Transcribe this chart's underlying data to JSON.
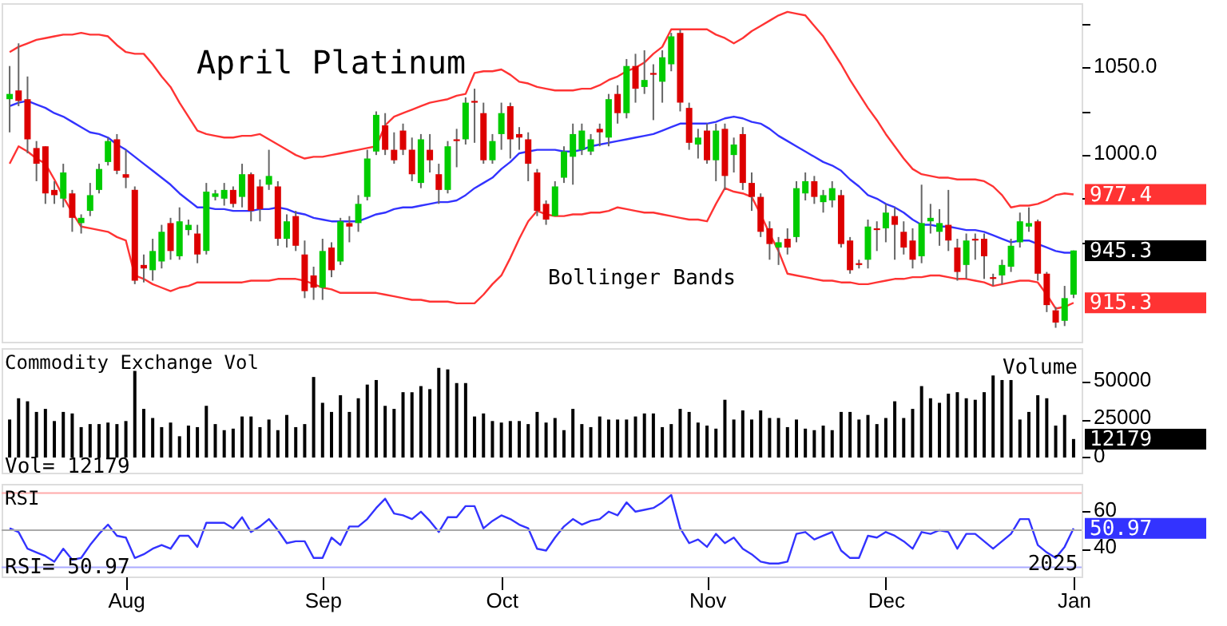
{
  "chart_data": [
    {
      "type": "candlestick",
      "title": "April Platinum",
      "tick_labels": "y",
      "ylim": [
        893,
        1087
      ],
      "yticks": [
        {
          "value": 1075,
          "label": null
        },
        {
          "value": 1050,
          "label": "1050.0"
        },
        {
          "value": 1025,
          "label": null
        },
        {
          "value": 1000,
          "label": "1000.0"
        },
        {
          "value": 975,
          "label": null
        },
        {
          "value": 950,
          "label": null
        }
      ],
      "categories": [
        null,
        null,
        null,
        null,
        null,
        null,
        null,
        null,
        null,
        null,
        null,
        null,
        null,
        null,
        null,
        null,
        null,
        null,
        null,
        null,
        null,
        null,
        null,
        null,
        null,
        null,
        null,
        null,
        null,
        null,
        null,
        null,
        null,
        null,
        null,
        null,
        null,
        null,
        null,
        null,
        null,
        null,
        null,
        null,
        null,
        null,
        null,
        null,
        null,
        null,
        null,
        null,
        null,
        null,
        null,
        null,
        null,
        null,
        null,
        null,
        null,
        null,
        null,
        null,
        null,
        null,
        null,
        null,
        null,
        null,
        null,
        null,
        null,
        null,
        null,
        null,
        null,
        null,
        null,
        null,
        null,
        null,
        null,
        null,
        null,
        null,
        null,
        null,
        null,
        null,
        null,
        null,
        null,
        null,
        null,
        null,
        null,
        null,
        null,
        null,
        null,
        null,
        null,
        null,
        null,
        null,
        null,
        null,
        null,
        null,
        null,
        null,
        null,
        null,
        null,
        null,
        null,
        null,
        null,
        null
      ],
      "ohlc": [
        [
          1032,
          1051,
          1013,
          1035
        ],
        [
          1037,
          1064,
          1028,
          1031
        ],
        [
          1032,
          1045,
          1001,
          1009
        ],
        [
          1004,
          1008,
          985,
          995
        ],
        [
          1005,
          1005,
          972,
          978
        ],
        [
          980,
          985,
          972,
          977
        ],
        [
          975,
          995,
          970,
          990
        ],
        [
          978,
          980,
          956,
          964
        ],
        [
          961,
          966,
          955,
          964
        ],
        [
          968,
          984,
          965,
          977
        ],
        [
          980,
          995,
          978,
          992
        ],
        [
          996,
          1010,
          994,
          1008
        ],
        [
          1009,
          1012,
          989,
          991
        ],
        [
          989,
          1003,
          981,
          987
        ],
        [
          980,
          982,
          926,
          928
        ],
        [
          937,
          943,
          927,
          935
        ],
        [
          934,
          952,
          928,
          945
        ],
        [
          939,
          960,
          935,
          956
        ],
        [
          961,
          964,
          940,
          945
        ],
        [
          942,
          970,
          940,
          962
        ],
        [
          957,
          963,
          954,
          960
        ],
        [
          955,
          960,
          938,
          943
        ],
        [
          945,
          984,
          943,
          979
        ],
        [
          976,
          980,
          974,
          978
        ],
        [
          975,
          984,
          971,
          980
        ],
        [
          980,
          982,
          970,
          972
        ],
        [
          976,
          995,
          970,
          989
        ],
        [
          989,
          990,
          962,
          968
        ],
        [
          982,
          986,
          962,
          969
        ],
        [
          983,
          1003,
          980,
          988
        ],
        [
          982,
          985,
          948,
          952
        ],
        [
          952,
          966,
          947,
          962
        ],
        [
          965,
          968,
          945,
          948
        ],
        [
          943,
          951,
          918,
          922
        ],
        [
          931,
          936,
          917,
          924
        ],
        [
          924,
          952,
          917,
          945
        ],
        [
          947,
          950,
          930,
          934
        ],
        [
          939,
          964,
          937,
          962
        ],
        [
          961,
          965,
          950,
          959
        ],
        [
          961,
          977,
          956,
          972
        ],
        [
          976,
          1003,
          974,
          998
        ],
        [
          1002,
          1025,
          1000,
          1023
        ],
        [
          1017,
          1024,
          1000,
          1003
        ],
        [
          1003,
          1013,
          995,
          997
        ],
        [
          1014,
          1018,
          1000,
          1003
        ],
        [
          1003,
          1010,
          985,
          989
        ],
        [
          984,
          1012,
          981,
          1009
        ],
        [
          1003,
          1012,
          990,
          997
        ],
        [
          989,
          995,
          972,
          980
        ],
        [
          980,
          1008,
          978,
          1005
        ],
        [
          1009,
          1015,
          993,
          1008
        ],
        [
          1009,
          1033,
          1006,
          1030
        ],
        [
          1031,
          1038,
          1007,
          1030
        ],
        [
          1024,
          1030,
          995,
          997
        ],
        [
          997,
          1012,
          995,
          1008
        ],
        [
          1012,
          1030,
          1003,
          1024
        ],
        [
          1028,
          1030,
          998,
          1009
        ],
        [
          1012,
          1016,
          1003,
          1010
        ],
        [
          1009,
          1013,
          985,
          995
        ],
        [
          990,
          992,
          965,
          968
        ],
        [
          972,
          974,
          960,
          963
        ],
        [
          965,
          985,
          965,
          982
        ],
        [
          987,
          1005,
          984,
          1002
        ],
        [
          999,
          1018,
          983,
          1012
        ],
        [
          1003,
          1018,
          1000,
          1014
        ],
        [
          1002,
          1012,
          1000,
          1009
        ],
        [
          1015,
          1018,
          1005,
          1013
        ],
        [
          1010,
          1035,
          1005,
          1032
        ],
        [
          1035,
          1040,
          1018,
          1024
        ],
        [
          1024,
          1055,
          1021,
          1051
        ],
        [
          1051,
          1058,
          1030,
          1038
        ],
        [
          1039,
          1060,
          1035,
          1043
        ],
        [
          1047,
          1052,
          1020,
          1046
        ],
        [
          1042,
          1060,
          1030,
          1056
        ],
        [
          1052,
          1070,
          1048,
          1068
        ],
        [
          1070,
          1072,
          1025,
          1030
        ],
        [
          1027,
          1030,
          1003,
          1007
        ],
        [
          1006,
          1015,
          998,
          1010
        ],
        [
          1014,
          1018,
          995,
          997
        ],
        [
          997,
          1018,
          985,
          1014
        ],
        [
          1015,
          1018,
          980,
          988
        ],
        [
          1000,
          1010,
          990,
          1006
        ],
        [
          1012,
          1016,
          980,
          984
        ],
        [
          984,
          990,
          968,
          976
        ],
        [
          976,
          978,
          953,
          956
        ],
        [
          958,
          962,
          940,
          949
        ],
        [
          947,
          953,
          937,
          950
        ],
        [
          952,
          958,
          943,
          947
        ],
        [
          953,
          985,
          950,
          981
        ],
        [
          978,
          990,
          974,
          985
        ],
        [
          985,
          988,
          972,
          976
        ],
        [
          973,
          980,
          967,
          977
        ],
        [
          974,
          985,
          970,
          981
        ],
        [
          977,
          980,
          947,
          949
        ],
        [
          951,
          953,
          932,
          934
        ],
        [
          938,
          940,
          935,
          937
        ],
        [
          940,
          963,
          935,
          959
        ],
        [
          958,
          962,
          945,
          957
        ],
        [
          958,
          972,
          950,
          967
        ],
        [
          965,
          970,
          940,
          960
        ],
        [
          956,
          962,
          943,
          947
        ],
        [
          951,
          958,
          935,
          940
        ],
        [
          942,
          983,
          938,
          961
        ],
        [
          962,
          972,
          955,
          964
        ],
        [
          956,
          969,
          948,
          961
        ],
        [
          960,
          980,
          945,
          951
        ],
        [
          947,
          952,
          928,
          933
        ],
        [
          937,
          955,
          929,
          951
        ],
        [
          952,
          955,
          940,
          951
        ],
        [
          952,
          955,
          929,
          942
        ],
        [
          930,
          932,
          925,
          929
        ],
        [
          931,
          940,
          926,
          937
        ],
        [
          936,
          952,
          933,
          948
        ],
        [
          950,
          967,
          947,
          962
        ],
        [
          959,
          970,
          956,
          961
        ],
        [
          962,
          963,
          928,
          932
        ],
        [
          932,
          933,
          910,
          914
        ],
        [
          911,
          913,
          901,
          904
        ],
        [
          905,
          925,
          902,
          918
        ],
        [
          920,
          945.3,
          918,
          945.3
        ]
      ],
      "colors": [
        "#00cc00",
        "#dd0000",
        "#dd0000",
        "#dd0000",
        "#dd0000",
        "#dd0000",
        "#00cc00",
        "#dd0000",
        "#00cc00",
        "#00cc00",
        "#00cc00",
        "#00cc00",
        "#dd0000",
        "#dd0000",
        "#dd0000",
        "#dd0000",
        "#00cc00",
        "#00cc00",
        "#dd0000",
        "#00cc00",
        "#00cc00",
        "#dd0000",
        "#00cc00",
        "#00cc00",
        "#00cc00",
        "#dd0000",
        "#00cc00",
        "#dd0000",
        "#dd0000",
        "#00cc00",
        "#dd0000",
        "#00cc00",
        "#dd0000",
        "#dd0000",
        "#dd0000",
        "#00cc00",
        "#dd0000",
        "#00cc00",
        "#dd0000",
        "#00cc00",
        "#00cc00",
        "#00cc00",
        "#dd0000",
        "#dd0000",
        "#dd0000",
        "#dd0000",
        "#00cc00",
        "#dd0000",
        "#dd0000",
        "#00cc00",
        "#dd0000",
        "#00cc00",
        "#dd0000",
        "#dd0000",
        "#00cc00",
        "#00cc00",
        "#dd0000",
        "#dd0000",
        "#dd0000",
        "#dd0000",
        "#dd0000",
        "#00cc00",
        "#00cc00",
        "#00cc00",
        "#00cc00",
        "#00cc00",
        "#dd0000",
        "#00cc00",
        "#dd0000",
        "#00cc00",
        "#dd0000",
        "#00cc00",
        "#dd0000",
        "#00cc00",
        "#00cc00",
        "#dd0000",
        "#dd0000",
        "#00cc00",
        "#dd0000",
        "#00cc00",
        "#dd0000",
        "#00cc00",
        "#dd0000",
        "#dd0000",
        "#dd0000",
        "#dd0000",
        "#00cc00",
        "#dd0000",
        "#00cc00",
        "#00cc00",
        "#dd0000",
        "#00cc00",
        "#00cc00",
        "#dd0000",
        "#dd0000",
        "#dd0000",
        "#00cc00",
        "#dd0000",
        "#00cc00",
        "#dd0000",
        "#dd0000",
        "#dd0000",
        "#00cc00",
        "#00cc00",
        "#00cc00",
        "#dd0000",
        "#dd0000",
        "#00cc00",
        "#dd0000",
        "#dd0000",
        "#dd0000",
        "#00cc00",
        "#00cc00",
        "#00cc00",
        "#00cc00",
        "#dd0000",
        "#dd0000",
        "#dd0000",
        "#00cc00",
        "#00cc00"
      ],
      "series": [
        {
          "type": "line",
          "color": "#ff3333",
          "values": [
            1059,
            1062,
            1064,
            1066,
            1067,
            1068,
            1069,
            1069,
            1070,
            1069,
            1069,
            1068,
            1063,
            1059,
            1058,
            1058,
            1052,
            1045,
            1039,
            1030,
            1022,
            1014,
            1012,
            1011,
            1010,
            1010,
            1011,
            1011,
            1012,
            1009,
            1006,
            1003,
            1000,
            998,
            999,
            999,
            1000,
            1001,
            1002,
            1003,
            1004,
            1005,
            1017,
            1022,
            1024,
            1026,
            1028,
            1030,
            1031,
            1032,
            1034,
            1035,
            1047,
            1048,
            1048,
            1049,
            1046,
            1042,
            1041,
            1039,
            1038,
            1037,
            1037,
            1037,
            1038,
            1038,
            1040,
            1043,
            1045,
            1048,
            1050,
            1053,
            1058,
            1062,
            1072,
            1072,
            1072,
            1072,
            1072,
            1069,
            1067,
            1064,
            1067,
            1071,
            1074,
            1077,
            1080,
            1082,
            1081,
            1080,
            1074,
            1068,
            1060,
            1052,
            1043,
            1035,
            1027,
            1020,
            1012,
            1005,
            998,
            992,
            989,
            988,
            987,
            987,
            986,
            986,
            986,
            985,
            982,
            977,
            970,
            971,
            971,
            972,
            974,
            977,
            978,
            977.4
          ],
          "value_labels": [
            null,
            null,
            null,
            null,
            null,
            null,
            null,
            null,
            null,
            null,
            null,
            null,
            null,
            null,
            null,
            null,
            null,
            null,
            null,
            null,
            null,
            null,
            null,
            null,
            null,
            null,
            null,
            null,
            null,
            null,
            null,
            null,
            null,
            null,
            null,
            null,
            null,
            null,
            null,
            null,
            null,
            null,
            null,
            null,
            null,
            null,
            null,
            null,
            null,
            null,
            null,
            null,
            null,
            null,
            null,
            null,
            null,
            null,
            null,
            null,
            null,
            null,
            null,
            null,
            null,
            null,
            null,
            null,
            null,
            null,
            null,
            null,
            null,
            null,
            null,
            null,
            null,
            null,
            null,
            null,
            null,
            null,
            null,
            null,
            null,
            null,
            null,
            null,
            null,
            null,
            null,
            null,
            null,
            null,
            null,
            null,
            null,
            null,
            null,
            null,
            null,
            null,
            null,
            null,
            null,
            null,
            null,
            null,
            null,
            null,
            null,
            null,
            null,
            null,
            null,
            null,
            null,
            null,
            null,
            "977.4"
          ]
        },
        {
          "type": "line",
          "color": "#3333ff",
          "values": [
            1028,
            1030,
            1031,
            1029,
            1027,
            1024,
            1022,
            1019,
            1016,
            1013,
            1012,
            1010,
            1006,
            1003,
            999,
            995,
            991,
            987,
            983,
            978,
            974,
            970,
            970,
            969,
            969,
            968,
            968,
            968,
            969,
            969,
            970,
            969,
            967,
            966,
            964,
            963,
            962,
            962,
            962,
            962,
            964,
            966,
            967,
            969,
            970,
            970,
            971,
            972,
            973,
            973,
            974,
            977,
            981,
            984,
            987,
            992,
            996,
            1001,
            1002,
            1003,
            1003,
            1003,
            1002,
            1002,
            1003,
            1005,
            1006,
            1007,
            1008,
            1009,
            1010,
            1011,
            1012,
            1014,
            1016,
            1018,
            1018,
            1018,
            1018,
            1019,
            1021,
            1022,
            1021,
            1019,
            1018,
            1015,
            1011,
            1008,
            1005,
            1002,
            999,
            996,
            994,
            991,
            986,
            982,
            977,
            975,
            972,
            970,
            967,
            963,
            960,
            960,
            959,
            959,
            958,
            957,
            957,
            956,
            954,
            952,
            950,
            951,
            951,
            949,
            947,
            945,
            944,
            944
          ]
        },
        {
          "type": "line",
          "color": "#ff3333",
          "values": [
            995,
            1005,
            1002,
            998,
            995,
            986,
            976,
            967,
            959,
            958,
            957,
            956,
            953,
            951,
            931,
            929,
            926,
            924,
            922,
            924,
            925,
            927,
            927,
            927,
            927,
            927,
            927,
            928,
            928,
            928,
            929,
            929,
            929,
            928,
            926,
            924,
            923,
            921,
            921,
            921,
            921,
            921,
            920,
            919,
            918,
            917,
            917,
            916,
            916,
            916,
            915,
            915,
            915,
            920,
            926,
            931,
            941,
            952,
            962,
            968,
            966,
            965,
            965,
            966,
            966,
            967,
            967,
            968,
            970,
            969,
            968,
            967,
            967,
            966,
            965,
            964,
            963,
            963,
            962,
            972,
            981,
            979,
            978,
            976,
            966,
            955,
            945,
            932,
            931,
            930,
            929,
            928,
            928,
            927,
            927,
            926,
            926,
            927,
            928,
            929,
            929,
            930,
            930,
            931,
            931,
            930,
            929,
            929,
            928,
            927,
            925,
            926,
            927,
            928,
            928,
            927,
            920,
            912,
            913,
            915.3
          ],
          "value_labels": [
            null,
            null,
            null,
            null,
            null,
            null,
            null,
            null,
            null,
            null,
            null,
            null,
            null,
            null,
            null,
            null,
            null,
            null,
            null,
            null,
            null,
            null,
            null,
            null,
            null,
            null,
            null,
            null,
            null,
            null,
            null,
            null,
            null,
            null,
            null,
            null,
            null,
            null,
            null,
            null,
            null,
            null,
            null,
            null,
            null,
            null,
            null,
            null,
            null,
            null,
            null,
            null,
            null,
            null,
            null,
            null,
            null,
            null,
            null,
            null,
            null,
            null,
            null,
            null,
            null,
            null,
            null,
            null,
            null,
            null,
            null,
            null,
            null,
            null,
            null,
            null,
            null,
            null,
            null,
            null,
            null,
            null,
            null,
            null,
            null,
            null,
            null,
            null,
            null,
            null,
            null,
            null,
            null,
            null,
            null,
            null,
            null,
            null,
            null,
            null,
            null,
            null,
            null,
            null,
            null,
            null,
            null,
            null,
            null,
            null,
            null,
            null,
            null,
            null,
            null,
            null,
            null,
            null,
            null,
            "915.3"
          ]
        }
      ],
      "annotations": [
        "Bollinger Bands",
        "945.3"
      ]
    },
    {
      "type": "bar",
      "title": "Commodity Exchange Vol",
      "tick_labels": "y",
      "ylim": [
        -10000,
        72000
      ],
      "yticks": [
        0,
        25000,
        50000
      ],
      "categories": [
        null,
        null,
        null,
        null,
        null,
        null,
        null,
        null,
        null,
        null,
        null,
        null,
        null,
        null,
        null,
        null,
        null,
        null,
        null,
        null,
        null,
        null,
        null,
        null,
        null,
        null,
        null,
        null,
        null,
        null,
        null,
        null,
        null,
        null,
        null,
        null,
        null,
        null,
        null,
        null,
        null,
        null,
        null,
        null,
        null,
        null,
        null,
        null,
        null,
        null,
        null,
        null,
        null,
        null,
        null,
        null,
        null,
        null,
        null,
        null,
        null,
        null,
        null,
        null,
        null,
        null,
        null,
        null,
        null,
        null,
        null,
        null,
        null,
        null,
        null,
        null,
        null,
        null,
        null,
        null,
        null,
        null,
        null,
        null,
        null,
        null,
        null,
        null,
        null,
        null,
        null,
        null,
        null,
        null,
        null,
        null,
        null,
        null,
        null,
        null,
        null,
        null,
        null,
        null,
        null,
        null,
        null,
        null,
        null,
        null,
        null,
        null,
        null,
        null,
        null,
        null,
        null,
        null,
        null,
        null
      ],
      "series": [
        {
          "color": "#000000",
          "values": [
            25000,
            39000,
            37000,
            30000,
            32000,
            24000,
            30000,
            29000,
            20000,
            22000,
            22000,
            23000,
            22000,
            24000,
            57000,
            32000,
            26000,
            20000,
            23000,
            14000,
            21000,
            20000,
            34000,
            22000,
            18000,
            19000,
            27000,
            27000,
            20000,
            25000,
            18000,
            28000,
            20000,
            22000,
            53000,
            36000,
            30000,
            41000,
            30000,
            39000,
            48000,
            51000,
            34000,
            32000,
            43000,
            43000,
            47000,
            45000,
            59000,
            58000,
            49000,
            49000,
            27000,
            29000,
            24000,
            23000,
            24000,
            24000,
            22000,
            30000,
            23000,
            26000,
            18000,
            32000,
            22000,
            20000,
            27000,
            25000,
            25000,
            25000,
            27000,
            29000,
            29000,
            20000,
            22000,
            32000,
            30000,
            23000,
            21000,
            19000,
            38000,
            25000,
            31000,
            25000,
            31000,
            26000,
            26000,
            20000,
            25000,
            19000,
            18000,
            21000,
            18000,
            30000,
            30000,
            25000,
            28000,
            22000,
            26000,
            37000,
            26000,
            32000,
            47000,
            39000,
            36000,
            42000,
            43000,
            39000,
            38000,
            43000,
            54000,
            51000,
            51000,
            25000,
            30000,
            41000,
            39000,
            21000,
            28000,
            12179
          ]
        }
      ],
      "annotations": [
        "Volume",
        "Vol=   12179",
        "12179"
      ]
    },
    {
      "type": "line",
      "title": "RSI",
      "ylim": [
        25,
        75
      ],
      "yticks": [
        40,
        60
      ],
      "categories": [
        null,
        null,
        null,
        null,
        null,
        null,
        null,
        null,
        null,
        null,
        null,
        null,
        null,
        "Aug",
        null,
        null,
        null,
        null,
        null,
        null,
        null,
        null,
        null,
        null,
        null,
        null,
        null,
        null,
        null,
        null,
        null,
        null,
        null,
        null,
        null,
        "Sep",
        null,
        null,
        null,
        null,
        null,
        null,
        null,
        null,
        null,
        null,
        null,
        null,
        null,
        null,
        null,
        null,
        null,
        null,
        null,
        "Oct",
        null,
        null,
        null,
        null,
        null,
        null,
        null,
        null,
        null,
        null,
        null,
        null,
        null,
        null,
        null,
        null,
        null,
        null,
        null,
        null,
        null,
        null,
        "Nov",
        null,
        null,
        null,
        null,
        null,
        null,
        null,
        null,
        null,
        null,
        null,
        null,
        null,
        null,
        null,
        null,
        null,
        null,
        null,
        "Dec",
        null,
        null,
        null,
        null,
        null,
        null,
        null,
        null,
        null,
        null,
        null,
        null,
        null,
        null,
        null,
        null,
        null,
        null,
        null,
        null,
        "Jan"
      ],
      "ref_lines": [
        {
          "axis": "y",
          "value": 70,
          "color": "#ffaaaa"
        },
        {
          "axis": "y",
          "value": 50,
          "color": "#aaaaaa"
        },
        {
          "axis": "y",
          "value": 30,
          "color": "#aaaaff"
        }
      ],
      "series": [
        {
          "color": "#3333ff",
          "values": [
            51,
            49,
            40,
            38,
            36,
            33,
            40,
            34,
            35,
            42,
            48,
            53,
            47,
            46,
            35,
            37,
            40,
            42,
            40,
            47,
            47,
            41,
            54,
            54,
            54,
            51,
            57,
            49,
            52,
            56,
            50,
            43,
            44,
            44,
            35,
            35,
            46,
            42,
            52,
            52,
            56,
            62,
            67,
            59,
            58,
            56,
            60,
            55,
            49,
            57,
            57,
            63,
            63,
            51,
            55,
            58,
            56,
            53,
            51,
            40,
            39,
            46,
            52,
            56,
            53,
            55,
            56,
            60,
            58,
            65,
            60,
            61,
            62,
            65,
            69,
            51,
            43,
            45,
            41,
            48,
            43,
            46,
            40,
            37,
            33,
            32,
            32,
            33,
            48,
            49,
            45,
            47,
            49,
            39,
            35,
            35,
            47,
            46,
            49,
            47,
            44,
            40,
            49,
            48,
            50,
            49,
            40,
            48,
            48,
            44,
            40,
            44,
            48,
            56,
            56,
            42,
            38,
            35,
            41,
            50.97
          ],
          "value_labels": [
            null,
            null,
            null,
            null,
            null,
            null,
            null,
            null,
            null,
            null,
            null,
            null,
            null,
            null,
            null,
            null,
            null,
            null,
            null,
            null,
            null,
            null,
            null,
            null,
            null,
            null,
            null,
            null,
            null,
            null,
            null,
            null,
            null,
            null,
            null,
            null,
            null,
            null,
            null,
            null,
            null,
            null,
            null,
            null,
            null,
            null,
            null,
            null,
            null,
            null,
            null,
            null,
            null,
            null,
            null,
            null,
            null,
            null,
            null,
            null,
            null,
            null,
            null,
            null,
            null,
            null,
            null,
            null,
            null,
            null,
            null,
            null,
            null,
            null,
            null,
            null,
            null,
            null,
            null,
            null,
            null,
            null,
            null,
            null,
            null,
            null,
            null,
            null,
            null,
            null,
            null,
            null,
            null,
            null,
            null,
            null,
            null,
            null,
            null,
            null,
            null,
            null,
            null,
            null,
            null,
            null,
            null,
            null,
            null,
            null,
            null,
            null,
            null,
            null,
            null,
            null,
            null,
            null,
            null,
            "50.97"
          ]
        }
      ],
      "annotations": [
        "RSI=   50.97",
        "2025"
      ]
    }
  ]
}
